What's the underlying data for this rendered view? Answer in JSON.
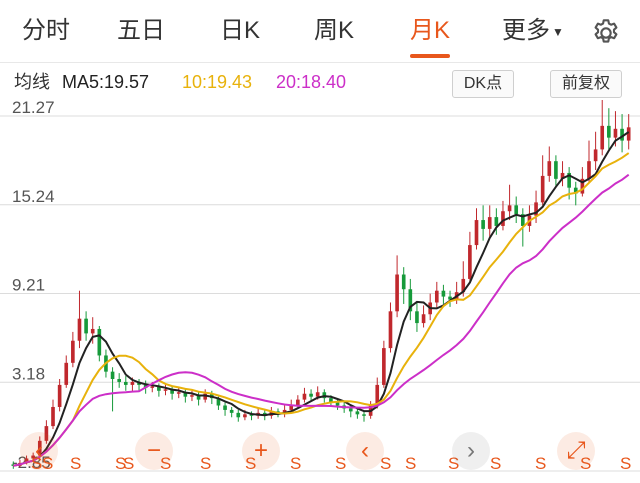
{
  "tabs": [
    {
      "label": "分时",
      "active": false
    },
    {
      "label": "五日",
      "active": false
    },
    {
      "label": "日K",
      "active": false
    },
    {
      "label": "周K",
      "active": false
    },
    {
      "label": "月K",
      "active": true
    },
    {
      "label": "更多",
      "active": false
    }
  ],
  "settings_icon": "gear-icon",
  "indicator": {
    "label": "均线",
    "ma5": "MA5:19.57",
    "ma10": "10:19.43",
    "ma20": "20:18.40",
    "dk_button": "DK点",
    "adjust_button": "前复权"
  },
  "colors": {
    "up": "#c0282d",
    "down": "#169a3a",
    "ma5": "#222222",
    "ma10": "#e8b20c",
    "ma20": "#cc2fc8",
    "accent": "#e8571c",
    "grid": "#dcdcdc"
  },
  "controls": {
    "zoom_out": "−",
    "zoom_in": "+",
    "prev": "‹",
    "next": "›",
    "fullscreen": "⤢"
  },
  "chart_data": {
    "type": "candlestick",
    "y_ticks": [
      "21.27",
      "15.24",
      "9.21",
      "3.18",
      "-2.85"
    ],
    "ylim": [
      -2.85,
      21.27
    ],
    "signal_label": "S",
    "signal_positions": [
      31,
      42,
      70,
      115,
      123,
      160,
      200,
      245,
      290,
      335,
      380,
      405,
      448,
      490,
      535,
      580,
      620
    ],
    "grid": true,
    "candles": [
      [
        -2.4,
        -2.5,
        -2.2,
        -2.7
      ],
      [
        -2.5,
        -2.3,
        -2.1,
        -2.6
      ],
      [
        -2.3,
        -2.0,
        -1.8,
        -2.4
      ],
      [
        -2.0,
        -1.8,
        -1.6,
        -2.1
      ],
      [
        -1.8,
        -0.8,
        -0.5,
        -1.9
      ],
      [
        -0.8,
        0.2,
        0.6,
        -1.0
      ],
      [
        0.2,
        1.5,
        2.0,
        0.0
      ],
      [
        1.5,
        3.0,
        3.4,
        1.2
      ],
      [
        3.0,
        4.5,
        5.0,
        2.8
      ],
      [
        4.5,
        6.0,
        6.6,
        4.2
      ],
      [
        6.0,
        7.5,
        9.4,
        5.5
      ],
      [
        7.5,
        6.5,
        8.0,
        6.0
      ],
      [
        6.5,
        6.8,
        7.6,
        5.8
      ],
      [
        6.8,
        5.0,
        7.0,
        4.6
      ],
      [
        5.0,
        3.9,
        5.4,
        3.5
      ],
      [
        3.9,
        3.4,
        4.2,
        1.2
      ],
      [
        3.4,
        3.2,
        3.8,
        2.8
      ],
      [
        3.2,
        3.0,
        3.6,
        2.6
      ],
      [
        3.0,
        3.2,
        3.5,
        2.5
      ],
      [
        3.2,
        3.0,
        3.4,
        2.6
      ],
      [
        3.0,
        2.8,
        3.3,
        2.4
      ],
      [
        2.8,
        2.9,
        3.2,
        2.5
      ],
      [
        2.9,
        2.6,
        3.1,
        2.2
      ],
      [
        2.6,
        2.7,
        3.0,
        2.3
      ],
      [
        2.7,
        2.4,
        2.9,
        2.0
      ],
      [
        2.4,
        2.5,
        2.8,
        2.1
      ],
      [
        2.5,
        2.2,
        2.7,
        1.8
      ],
      [
        2.2,
        2.3,
        2.6,
        1.9
      ],
      [
        2.3,
        2.0,
        2.5,
        1.6
      ],
      [
        2.0,
        2.4,
        2.7,
        1.8
      ],
      [
        2.4,
        2.1,
        2.6,
        1.7
      ],
      [
        2.1,
        1.6,
        2.2,
        1.3
      ],
      [
        1.6,
        1.3,
        1.8,
        0.9
      ],
      [
        1.3,
        1.1,
        1.5,
        0.8
      ],
      [
        1.1,
        0.8,
        1.3,
        0.5
      ],
      [
        0.8,
        1.0,
        1.3,
        0.6
      ],
      [
        1.0,
        0.9,
        1.2,
        0.6
      ],
      [
        0.9,
        1.1,
        1.4,
        0.7
      ],
      [
        1.1,
        0.9,
        1.3,
        0.6
      ],
      [
        0.9,
        1.2,
        1.5,
        0.7
      ],
      [
        1.2,
        1.0,
        1.4,
        0.8
      ],
      [
        1.0,
        1.3,
        1.6,
        0.8
      ],
      [
        1.3,
        1.6,
        2.0,
        1.1
      ],
      [
        1.6,
        2.0,
        2.3,
        1.4
      ],
      [
        2.0,
        2.4,
        2.8,
        1.8
      ],
      [
        2.4,
        2.2,
        2.7,
        1.9
      ],
      [
        2.2,
        2.5,
        2.9,
        2.0
      ],
      [
        2.5,
        2.1,
        2.7,
        1.8
      ],
      [
        2.1,
        1.8,
        2.3,
        1.5
      ],
      [
        1.8,
        1.6,
        2.0,
        1.3
      ],
      [
        1.6,
        1.4,
        1.8,
        1.1
      ],
      [
        1.4,
        1.2,
        1.6,
        0.8
      ],
      [
        1.2,
        1.0,
        1.4,
        0.7
      ],
      [
        1.0,
        0.9,
        1.2,
        0.5
      ],
      [
        0.9,
        1.6,
        1.9,
        0.7
      ],
      [
        1.6,
        3.0,
        3.5,
        1.4
      ],
      [
        3.0,
        5.5,
        6.0,
        2.8
      ],
      [
        5.5,
        8.0,
        8.6,
        5.2
      ],
      [
        8.0,
        10.5,
        11.8,
        7.6
      ],
      [
        10.5,
        9.5,
        11.0,
        8.5
      ],
      [
        9.5,
        8.0,
        10.2,
        7.4
      ],
      [
        8.0,
        7.2,
        8.6,
        6.6
      ],
      [
        7.2,
        7.8,
        8.4,
        6.9
      ],
      [
        7.8,
        8.6,
        9.2,
        7.4
      ],
      [
        8.6,
        9.4,
        10.0,
        8.2
      ],
      [
        9.4,
        9.0,
        9.8,
        8.5
      ],
      [
        9.0,
        8.8,
        9.4,
        8.3
      ],
      [
        8.8,
        9.3,
        10.0,
        8.5
      ],
      [
        9.3,
        10.2,
        11.4,
        9.0
      ],
      [
        10.2,
        12.5,
        13.4,
        10.0
      ],
      [
        12.5,
        14.2,
        15.0,
        12.2
      ],
      [
        14.2,
        13.6,
        15.2,
        12.8
      ],
      [
        13.6,
        14.4,
        15.2,
        13.0
      ],
      [
        14.4,
        13.8,
        15.0,
        13.2
      ],
      [
        13.8,
        14.8,
        15.5,
        13.5
      ],
      [
        14.8,
        15.2,
        16.6,
        14.2
      ],
      [
        15.2,
        14.6,
        15.8,
        14.0
      ],
      [
        14.6,
        13.8,
        15.0,
        12.4
      ],
      [
        13.8,
        14.5,
        15.2,
        13.4
      ],
      [
        14.5,
        15.4,
        16.2,
        14.0
      ],
      [
        15.4,
        17.2,
        18.6,
        15.2
      ],
      [
        17.2,
        18.2,
        19.2,
        16.8
      ],
      [
        18.2,
        17.0,
        18.6,
        16.4
      ],
      [
        17.0,
        17.4,
        18.2,
        16.5
      ],
      [
        17.4,
        16.4,
        17.8,
        15.6
      ],
      [
        16.4,
        16.0,
        16.8,
        15.2
      ],
      [
        16.0,
        17.0,
        17.8,
        15.8
      ],
      [
        17.0,
        18.2,
        19.6,
        16.8
      ],
      [
        18.2,
        19.0,
        20.2,
        17.6
      ],
      [
        19.0,
        20.6,
        22.8,
        18.6
      ],
      [
        20.6,
        19.8,
        21.8,
        19.0
      ],
      [
        19.8,
        20.4,
        21.6,
        19.2
      ],
      [
        20.4,
        19.6,
        21.4,
        18.8
      ],
      [
        19.6,
        20.5,
        21.4,
        19.0
      ]
    ]
  }
}
